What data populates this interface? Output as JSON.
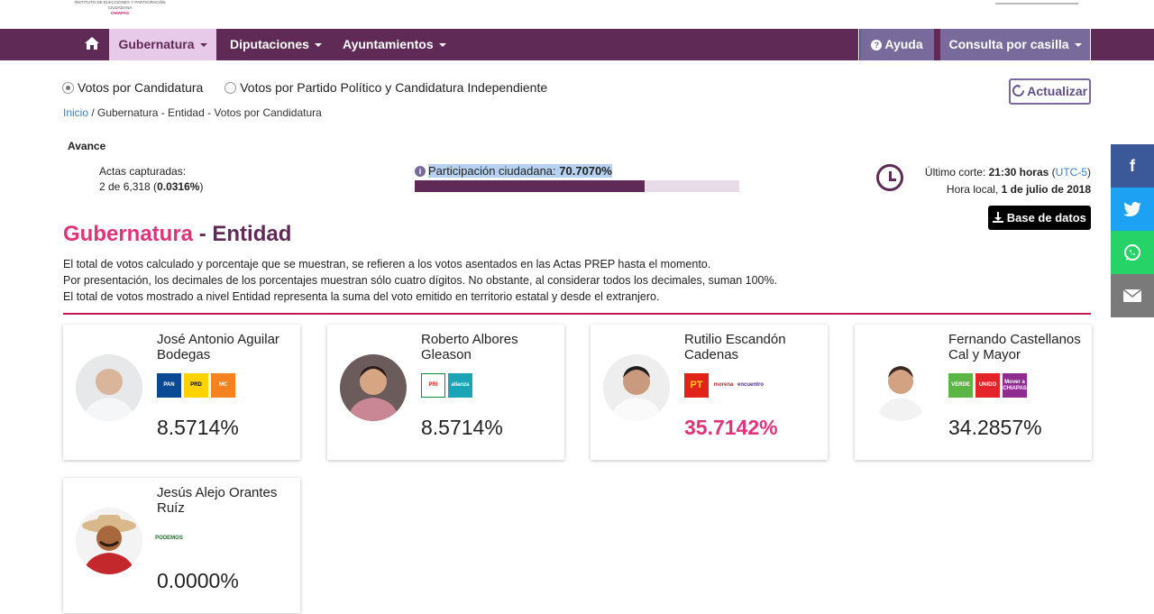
{
  "header": {
    "institute": "INSTITUTO DE ELECCIONES Y PARTICIPACIÓN CIUDADANA",
    "institute_state": "CHIAPAS"
  },
  "nav": {
    "home_icon": "home-icon",
    "gubernatura": "Gubernatura",
    "diputaciones": "Diputaciones",
    "ayuntamientos": "Ayuntamientos",
    "ayuda": "Ayuda",
    "consulta": "Consulta por casilla"
  },
  "view": {
    "option_candidatura": "Votos por Candidatura",
    "option_partido": "Votos por Partido Político y Candidatura Independiente",
    "actualizar": "Actualizar"
  },
  "breadcrumb": {
    "inicio": "Inicio",
    "rest": " / Gubernatura - Entidad -  Votos por Candidatura"
  },
  "avance": {
    "title": "Avance",
    "actas_label": "Actas capturadas:",
    "actas_value": "2 de 6,318 (",
    "actas_pct": "0.0316%",
    "actas_close": ")",
    "participacion_label": "Participación ciudadana: ",
    "participacion_value": "70.7070%",
    "participacion_fraction": 0.70707,
    "corte_label": "Último corte: ",
    "corte_time": "21:30 horas",
    "corte_tz": "UTC-5",
    "local_label": "Hora local, ",
    "local_date": "1 de julio de 2018",
    "base_datos": "Base de datos"
  },
  "heading": {
    "part1": "Gubernatura",
    "sep": " - ",
    "part2": "Entidad"
  },
  "description": [
    "El total de votos calculado y porcentaje que se muestran, se refieren a los votos asentados en las Actas PREP hasta el momento.",
    "Por presentación, los decimales de los porcentajes muestran sólo cuatro dígitos. No obstante, al considerar todos los decimales, suman 100%.",
    "El total de votos mostrado a nivel Entidad representa la suma del voto emitido en territorio estatal y desde el extranjero."
  ],
  "candidates": [
    {
      "name": "José Antonio Aguilar Bodegas",
      "pct": "8.5714%",
      "logos": [
        "PAN",
        "PRD",
        "MC"
      ]
    },
    {
      "name": "Roberto Albores Gleason",
      "pct": "8.5714%",
      "logos": [
        "PRI",
        "alianza"
      ]
    },
    {
      "name": "Rutilio Escandón Cadenas",
      "pct": "35.7142%",
      "logos": [
        "PT",
        "morena",
        "encuentro"
      ]
    },
    {
      "name": "Fernando Castellanos Cal y Mayor",
      "pct": "34.2857%",
      "logos": [
        "VERDE",
        "UNIDO",
        "Mover a CHIAPAS"
      ]
    },
    {
      "name": "Jesús Alejo Orantes Ruíz",
      "pct": "0.0000%",
      "logos": [
        "PODEMOS"
      ]
    }
  ],
  "social": {
    "facebook": "f",
    "twitter": "twitter-icon",
    "whatsapp": "whatsapp-icon",
    "email": "email-icon"
  },
  "colors": {
    "primary": "#5f2a55",
    "accent": "#e0347a",
    "secondary": "#786b9b"
  }
}
